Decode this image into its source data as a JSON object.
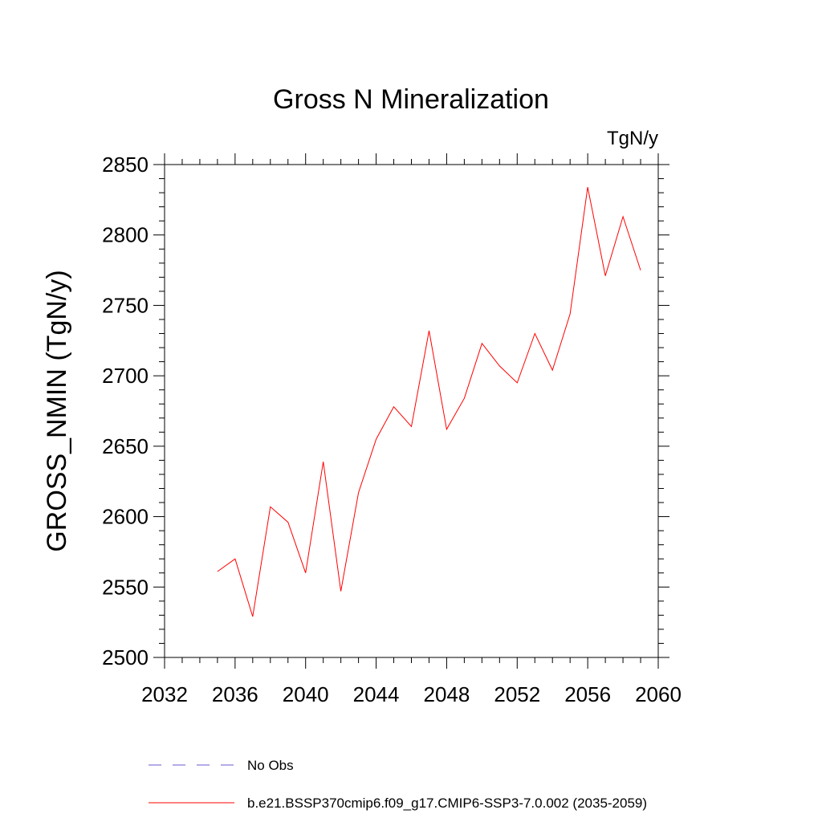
{
  "chart_data": {
    "type": "line",
    "title": "Gross N Mineralization",
    "units_label": "TgN/y",
    "ylabel": "GROSS_NMIN  (TgN/y)",
    "xlabel": "",
    "xlim": [
      2032,
      2060
    ],
    "ylim": [
      2500,
      2850
    ],
    "x_ticks": [
      2032,
      2036,
      2040,
      2044,
      2048,
      2052,
      2056,
      2060
    ],
    "y_ticks": [
      2500,
      2550,
      2600,
      2650,
      2700,
      2750,
      2800,
      2850
    ],
    "series": [
      {
        "name": "b.e21.BSSP370cmip6.f09_g17.CMIP6-SSP3-7.0.002 (2035-2059)",
        "color": "#ff0000",
        "style": "solid",
        "x": [
          2035,
          2036,
          2037,
          2038,
          2039,
          2040,
          2041,
          2042,
          2043,
          2044,
          2045,
          2046,
          2047,
          2048,
          2049,
          2050,
          2051,
          2052,
          2053,
          2054,
          2055,
          2056,
          2057,
          2058,
          2059
        ],
        "values": [
          2561,
          2570,
          2529,
          2607,
          2596,
          2560,
          2639,
          2547,
          2617,
          2655,
          2678,
          2664,
          2732,
          2662,
          2684,
          2723,
          2707,
          2695,
          2730,
          2704,
          2744,
          2834,
          2771,
          2813,
          2775
        ]
      }
    ],
    "legend": [
      {
        "label": "No Obs",
        "color": "#6a5acd",
        "style": "dashed"
      },
      {
        "label": "b.e21.BSSP370cmip6.f09_g17.CMIP6-SSP3-7.0.002 (2035-2059)",
        "color": "#ff0000",
        "style": "solid"
      }
    ],
    "grid": false,
    "legend_position": "bottom"
  }
}
